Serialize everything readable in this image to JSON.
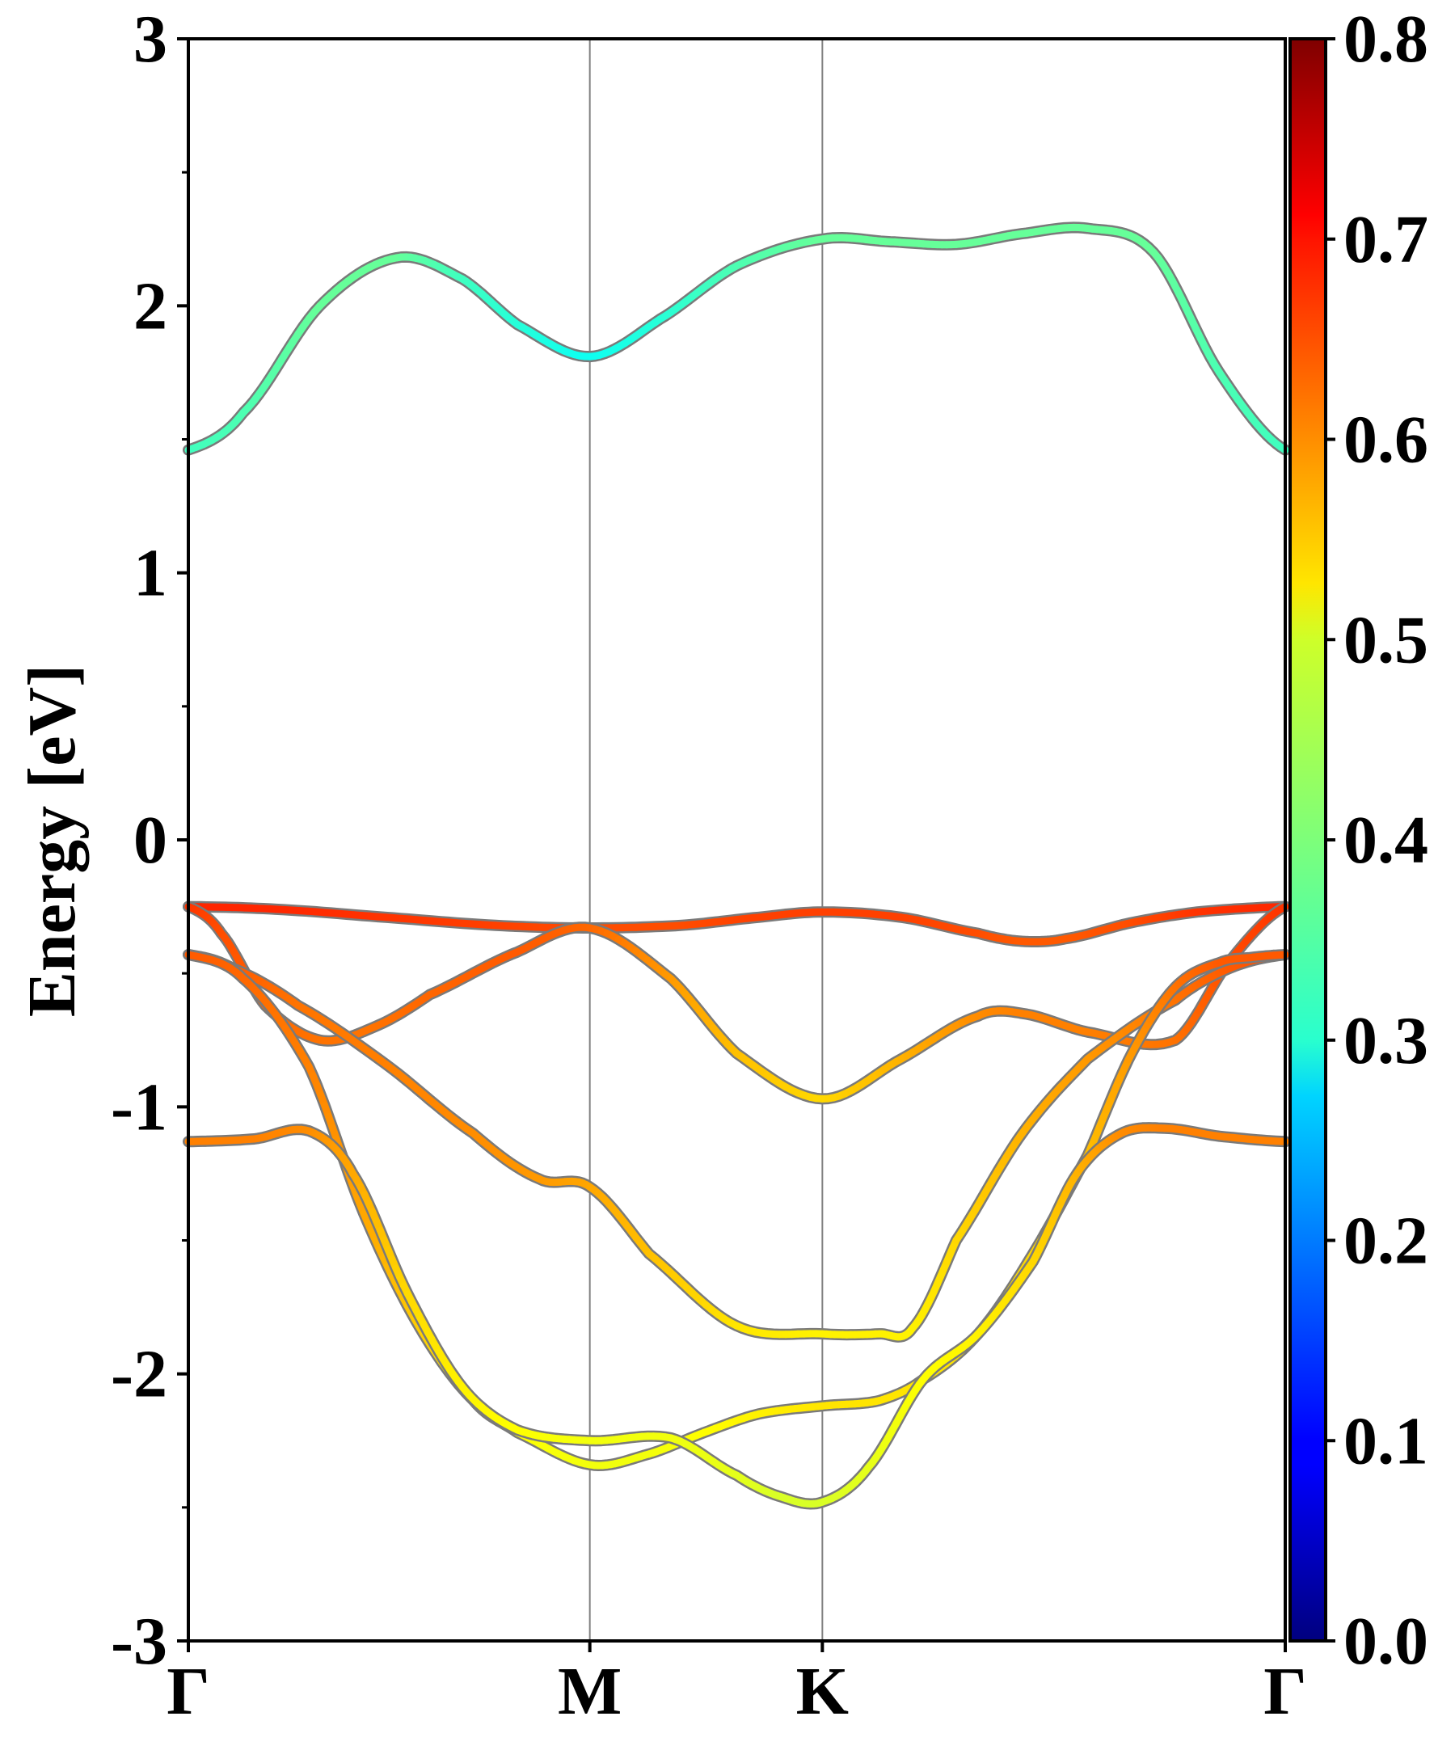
{
  "chart_data": {
    "type": "line",
    "ylabel": "Energy [eV]",
    "ylim": [
      -3,
      3
    ],
    "yticks": [
      "-3",
      "-2",
      "-1",
      "0",
      "1",
      "2",
      "3"
    ],
    "yticks_values": [
      -3,
      -2,
      -1,
      0,
      1,
      2,
      3
    ],
    "xlim": [
      0,
      1
    ],
    "kpoints": [
      {
        "label": "Γ",
        "x": 0.0
      },
      {
        "label": "M",
        "x": 0.366
      },
      {
        "label": "K",
        "x": 0.578
      },
      {
        "label": "Γ",
        "x": 1.0
      }
    ],
    "grid": false,
    "vertical_lines_at_kpoints": true,
    "colorbar": {
      "colormap": "jet",
      "range": [
        0.0,
        0.8
      ],
      "ticks": [
        "0.0",
        "0.1",
        "0.2",
        "0.3",
        "0.4",
        "0.5",
        "0.6",
        "0.7",
        "0.8"
      ],
      "tick_values": [
        0.0,
        0.1,
        0.2,
        0.3,
        0.4,
        0.5,
        0.6,
        0.7,
        0.8
      ]
    },
    "series": [
      {
        "x": [
          0,
          0.05,
          0.12,
          0.19,
          0.25,
          0.3,
          0.366,
          0.43,
          0.5,
          0.578,
          0.64,
          0.7,
          0.76,
          0.82,
          0.88,
          0.94,
          1.0
        ],
        "y": [
          1.46,
          1.6,
          2.0,
          2.18,
          2.1,
          1.93,
          1.81,
          1.95,
          2.15,
          2.25,
          2.24,
          2.23,
          2.27,
          2.29,
          2.2,
          1.75,
          1.46
        ],
        "weight": [
          0.35,
          0.36,
          0.38,
          0.38,
          0.35,
          0.33,
          0.31,
          0.33,
          0.36,
          0.38,
          0.38,
          0.38,
          0.38,
          0.38,
          0.38,
          0.36,
          0.35
        ]
      },
      {
        "x": [
          0,
          0.08,
          0.18,
          0.28,
          0.366,
          0.45,
          0.52,
          0.578,
          0.65,
          0.72,
          0.76,
          0.8,
          0.86,
          0.92,
          1.0
        ],
        "y": [
          -0.25,
          -0.26,
          -0.29,
          -0.32,
          -0.33,
          -0.32,
          -0.29,
          -0.27,
          -0.29,
          -0.35,
          -0.38,
          -0.37,
          -0.31,
          -0.27,
          -0.25
        ],
        "weight": [
          0.67,
          0.67,
          0.66,
          0.65,
          0.64,
          0.64,
          0.65,
          0.65,
          0.65,
          0.64,
          0.63,
          0.63,
          0.64,
          0.66,
          0.67
        ]
      },
      {
        "x": [
          0,
          0.03,
          0.07,
          0.12,
          0.17,
          0.22,
          0.3,
          0.366,
          0.44,
          0.5,
          0.578,
          0.65,
          0.72,
          0.76,
          0.82,
          0.9,
          0.95,
          1.0
        ],
        "y": [
          -0.25,
          -0.35,
          -0.62,
          -0.75,
          -0.7,
          -0.58,
          -0.42,
          -0.33,
          -0.52,
          -0.8,
          -0.97,
          -0.82,
          -0.66,
          -0.65,
          -0.72,
          -0.75,
          -0.45,
          -0.25
        ],
        "weight": [
          0.66,
          0.64,
          0.62,
          0.61,
          0.61,
          0.62,
          0.63,
          0.62,
          0.58,
          0.55,
          0.53,
          0.56,
          0.59,
          0.6,
          0.6,
          0.61,
          0.64,
          0.66
        ]
      },
      {
        "x": [
          0,
          0.04,
          0.1,
          0.18,
          0.26,
          0.32,
          0.366,
          0.42,
          0.5,
          0.578,
          0.63,
          0.66,
          0.7,
          0.76,
          0.82,
          0.9,
          0.95,
          1.0
        ],
        "y": [
          -0.43,
          -0.48,
          -0.62,
          -0.84,
          -1.1,
          -1.27,
          -1.3,
          -1.55,
          -1.82,
          -1.85,
          -1.85,
          -1.83,
          -1.5,
          -1.1,
          -0.82,
          -0.6,
          -0.48,
          -0.43
        ],
        "weight": [
          0.64,
          0.63,
          0.61,
          0.6,
          0.59,
          0.58,
          0.57,
          0.55,
          0.52,
          0.51,
          0.51,
          0.51,
          0.53,
          0.56,
          0.58,
          0.61,
          0.63,
          0.64
        ]
      },
      {
        "x": [
          0,
          0.05,
          0.11,
          0.16,
          0.21,
          0.26,
          0.3,
          0.366,
          0.42,
          0.47,
          0.52,
          0.578,
          0.63,
          0.67,
          0.72,
          0.77,
          0.82,
          0.86,
          0.9,
          0.94,
          0.97,
          1.0
        ],
        "y": [
          -0.43,
          -0.52,
          -0.85,
          -1.4,
          -1.82,
          -2.1,
          -2.22,
          -2.34,
          -2.3,
          -2.22,
          -2.15,
          -2.12,
          -2.1,
          -2.02,
          -1.85,
          -1.55,
          -1.18,
          -0.8,
          -0.55,
          -0.46,
          -0.44,
          -0.43
        ],
        "weight": [
          0.63,
          0.62,
          0.6,
          0.57,
          0.54,
          0.51,
          0.5,
          0.49,
          0.49,
          0.5,
          0.51,
          0.52,
          0.52,
          0.52,
          0.52,
          0.53,
          0.55,
          0.58,
          0.61,
          0.63,
          0.63,
          0.63
        ]
      },
      {
        "x": [
          0,
          0.06,
          0.11,
          0.15,
          0.2,
          0.25,
          0.3,
          0.366,
          0.44,
          0.5,
          0.54,
          0.578,
          0.62,
          0.67,
          0.72,
          0.77,
          0.81,
          0.85,
          0.89,
          0.94,
          1.0
        ],
        "y": [
          -1.13,
          -1.12,
          -1.09,
          -1.25,
          -1.7,
          -2.05,
          -2.21,
          -2.25,
          -2.24,
          -2.38,
          -2.46,
          -2.48,
          -2.35,
          -2.02,
          -1.85,
          -1.58,
          -1.25,
          -1.1,
          -1.08,
          -1.11,
          -1.13
        ],
        "weight": [
          0.6,
          0.6,
          0.59,
          0.57,
          0.53,
          0.51,
          0.5,
          0.49,
          0.49,
          0.48,
          0.47,
          0.47,
          0.48,
          0.5,
          0.51,
          0.53,
          0.56,
          0.59,
          0.6,
          0.6,
          0.6
        ]
      }
    ]
  }
}
